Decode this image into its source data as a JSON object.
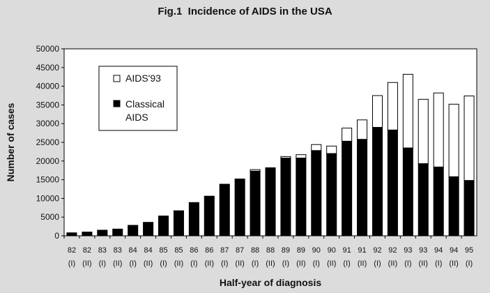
{
  "chart_data": {
    "type": "bar",
    "stacked": true,
    "title": "Fig.1  Incidence of AIDS in the USA",
    "xlabel": "Half-year of diagnosis",
    "ylabel": "Number of cases",
    "ylim": [
      0,
      50000
    ],
    "yticks": [
      0,
      5000,
      10000,
      15000,
      20000,
      25000,
      30000,
      35000,
      40000,
      45000,
      50000
    ],
    "categories": [
      {
        "year": "82",
        "half": "(I)"
      },
      {
        "year": "82",
        "half": "(II)"
      },
      {
        "year": "83",
        "half": "(I)"
      },
      {
        "year": "83",
        "half": "(II)"
      },
      {
        "year": "84",
        "half": "(I)"
      },
      {
        "year": "84",
        "half": "(II)"
      },
      {
        "year": "85",
        "half": "(I)"
      },
      {
        "year": "85",
        "half": "(II)"
      },
      {
        "year": "86",
        "half": "(I)"
      },
      {
        "year": "86",
        "half": "(II)"
      },
      {
        "year": "87",
        "half": "(I)"
      },
      {
        "year": "87",
        "half": "(II)"
      },
      {
        "year": "88",
        "half": "(I)"
      },
      {
        "year": "88",
        "half": "(II)"
      },
      {
        "year": "89",
        "half": "(I)"
      },
      {
        "year": "89",
        "half": "(II)"
      },
      {
        "year": "90",
        "half": "(I)"
      },
      {
        "year": "90",
        "half": "(II)"
      },
      {
        "year": "91",
        "half": "(I)"
      },
      {
        "year": "91",
        "half": "(II)"
      },
      {
        "year": "92",
        "half": "(I)"
      },
      {
        "year": "92",
        "half": "(II)"
      },
      {
        "year": "93",
        "half": "(I)"
      },
      {
        "year": "93",
        "half": "(II)"
      },
      {
        "year": "94",
        "half": "(I)"
      },
      {
        "year": "94",
        "half": "(II)"
      },
      {
        "year": "95",
        "half": "(I)"
      }
    ],
    "series": [
      {
        "name": "Classical AIDS",
        "color": "#000000",
        "values": [
          800,
          1000,
          1500,
          1800,
          2800,
          3600,
          5300,
          6700,
          8900,
          10600,
          13800,
          15200,
          17300,
          18200,
          20800,
          20800,
          22800,
          22000,
          25300,
          25800,
          29000,
          28300,
          23500,
          19300,
          18400,
          15800,
          14800
        ]
      },
      {
        "name": "AIDS'93",
        "color": "#ffffff",
        "values": [
          0,
          0,
          0,
          0,
          0,
          0,
          0,
          0,
          0,
          0,
          0,
          0,
          400,
          0,
          400,
          900,
          1600,
          2000,
          3500,
          5200,
          8500,
          12700,
          19700,
          17200,
          19800,
          19400,
          22600
        ]
      }
    ],
    "legend": {
      "position": "upper-left",
      "entries": [
        {
          "label": "AIDS'93",
          "color": "#ffffff"
        },
        {
          "label": "Classical AIDS",
          "color": "#000000"
        }
      ]
    }
  }
}
